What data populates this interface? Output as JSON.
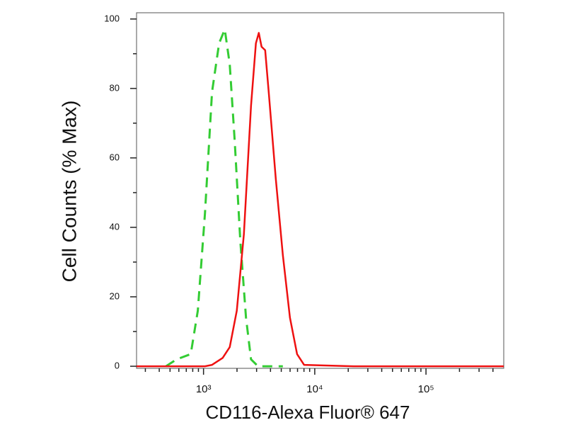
{
  "chart_data": {
    "type": "line",
    "x_label": "CD116-Alexa Fluor® 647",
    "y_label": "Cell Counts (% Max)",
    "x_scale": "log",
    "xlim": [
      250,
      500000
    ],
    "ylim": [
      -0.6,
      101.8
    ],
    "xticks": [
      {
        "value": 1000,
        "label": "10³"
      },
      {
        "value": 10000,
        "label": "10⁴"
      },
      {
        "value": 100000,
        "label": "10⁵"
      }
    ],
    "xminorticks": [
      300,
      400,
      500,
      600,
      700,
      800,
      900,
      2000,
      3000,
      4000,
      5000,
      6000,
      7000,
      8000,
      9000,
      20000,
      30000,
      40000,
      50000,
      60000,
      70000,
      80000,
      90000,
      200000,
      300000,
      400000
    ],
    "yticks": [
      0,
      20,
      40,
      60,
      80,
      100
    ],
    "yminorticks": [
      10,
      30,
      50,
      70,
      90
    ],
    "series": [
      {
        "color": "#33cc33",
        "dashed": true,
        "x": [
          459,
          573,
          768,
          889,
          1030,
          1192,
          1380,
          1553,
          1721,
          1906,
          2143,
          2411,
          2673,
          3093,
          5168
        ],
        "values": [
          0,
          2,
          3.5,
          16,
          44,
          79,
          93,
          97,
          87,
          65,
          36,
          14,
          2,
          0,
          0
        ]
      },
      {
        "color": "#ee1111",
        "dashed": false,
        "x": [
          250,
          1030,
          1192,
          1486,
          1721,
          1993,
          2306,
          2673,
          2958,
          3141,
          3327,
          3581,
          3854,
          4466,
          5168,
          5986,
          6932,
          8019,
          22390,
          500000
        ],
        "values": [
          0,
          0,
          0.4,
          2.4,
          5.5,
          16,
          38,
          75,
          93,
          96,
          92,
          91,
          79,
          54,
          32,
          14,
          3.5,
          0.4,
          0,
          0
        ]
      }
    ]
  }
}
